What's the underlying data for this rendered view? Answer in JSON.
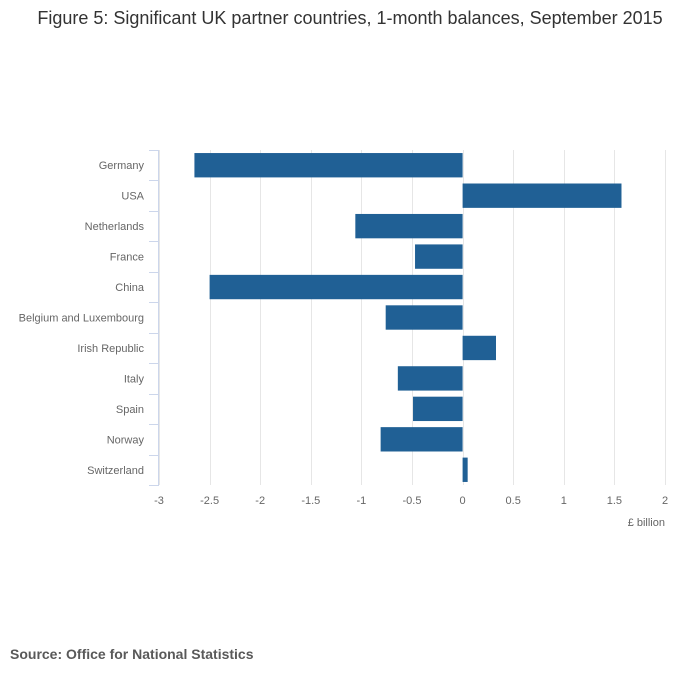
{
  "title": "Figure 5: Significant UK partner countries, 1-month balances, September 2015",
  "source": "Source: Office for National Statistics",
  "colors": {
    "bar": "#206095",
    "grid": "#e6e6e6",
    "axis": "#ccd6eb",
    "text": "#666666"
  },
  "chart_data": {
    "type": "bar",
    "orientation": "horizontal",
    "title": "Figure 5: Significant UK partner countries, 1-month balances, September 2015",
    "categories": [
      "Germany",
      "USA",
      "Netherlands",
      "France",
      "China",
      "Belgium and Luxembourg",
      "Irish Republic",
      "Italy",
      "Spain",
      "Norway",
      "Switzerland"
    ],
    "values": [
      -2.65,
      1.57,
      -1.06,
      -0.47,
      -2.5,
      -0.76,
      0.33,
      -0.64,
      -0.49,
      -0.81,
      0.05
    ],
    "xlabel": "£ billion",
    "ylabel": "",
    "xlim": [
      -3,
      2
    ],
    "ticks": [
      -3,
      -2.5,
      -2,
      -1.5,
      -1,
      -0.5,
      0,
      0.5,
      1,
      1.5,
      2
    ],
    "tick_labels": [
      "-3",
      "-2.5",
      "-2",
      "-1.5",
      "-1",
      "-0.5",
      "0",
      "0.5",
      "1",
      "1.5",
      "2"
    ],
    "grid": true,
    "legend": "none"
  }
}
